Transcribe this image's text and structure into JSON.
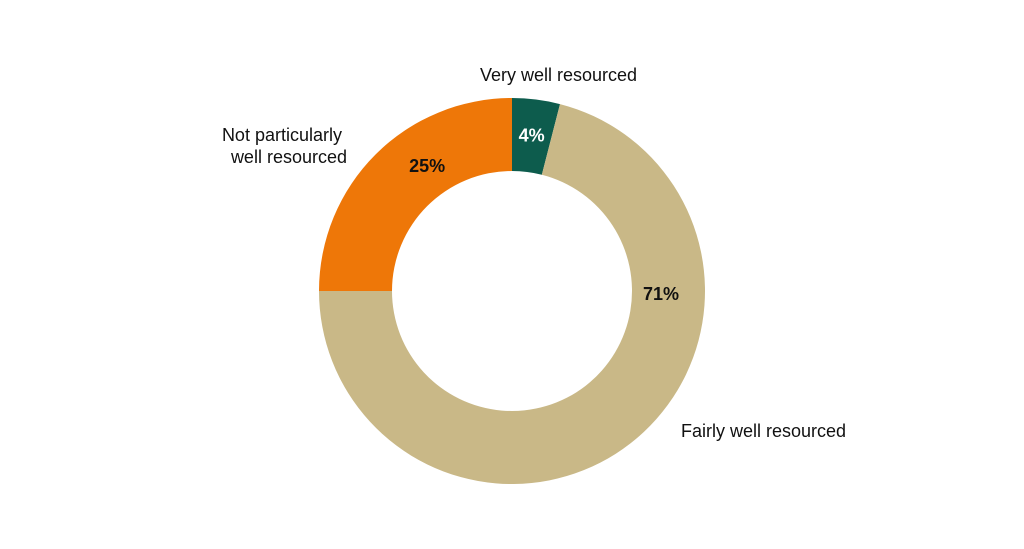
{
  "chart_data": {
    "type": "pie",
    "variant": "donut",
    "title": "",
    "categories": [
      "Very well resourced",
      "Fairly well resourced",
      "Not particularly well resourced"
    ],
    "values": [
      4,
      71,
      25
    ],
    "value_labels": [
      "4%",
      "71%",
      "25%"
    ],
    "colors": [
      "#0d5c4d",
      "#c9b887",
      "#ee7708"
    ],
    "label_colors": [
      "#ffffff",
      "#111111",
      "#111111"
    ],
    "legend": "none"
  }
}
